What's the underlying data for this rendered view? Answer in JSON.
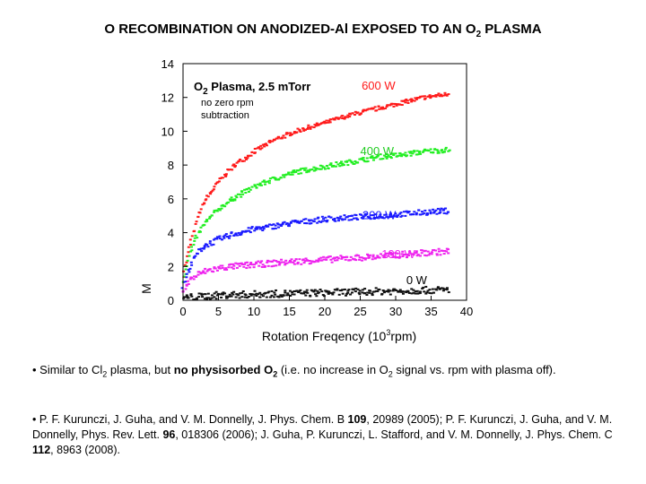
{
  "slide_title": {
    "main": "O RECOMBINATION ON ANODIZED-Al EXPOSED TO AN O",
    "sub": "2",
    "suffix": " PLASMA"
  },
  "chart_data": {
    "type": "scatter",
    "xlabel": "Rotation Freqency (10",
    "xlabel_sup": "3",
    "xlabel_suffix": "rpm)",
    "ylabel": "M",
    "xlim": [
      0,
      40
    ],
    "ylim": [
      0,
      14
    ],
    "x_ticks": [
      "0",
      "5",
      "10",
      "15",
      "20",
      "25",
      "30",
      "35",
      "40"
    ],
    "y_ticks": [
      "0",
      "2",
      "4",
      "6",
      "8",
      "10",
      "12",
      "14"
    ],
    "annotation": {
      "title": "O",
      "title_sub": "2",
      "title_suffix": " Plasma, 2.5 mTorr",
      "line1": "no zero rpm",
      "line2": "subtraction"
    },
    "series": [
      {
        "name": "600 W",
        "color": "#ff1a1a",
        "x": [
          0,
          1,
          2,
          3,
          5,
          7,
          10,
          13,
          16,
          20,
          24,
          28,
          31,
          34,
          37.5
        ],
        "values": [
          1.5,
          3.3,
          4.8,
          5.8,
          7.0,
          7.9,
          8.8,
          9.5,
          10.0,
          10.5,
          11.0,
          11.4,
          11.7,
          12.0,
          12.2
        ]
      },
      {
        "name": "400 W",
        "color": "#22ee22",
        "x": [
          0,
          1,
          2,
          3,
          5,
          7,
          10,
          13,
          16,
          20,
          24,
          28,
          31,
          34,
          37.5
        ],
        "values": [
          1.2,
          2.8,
          3.8,
          4.5,
          5.4,
          6.0,
          6.7,
          7.2,
          7.6,
          7.9,
          8.2,
          8.5,
          8.6,
          8.8,
          8.9
        ]
      },
      {
        "name": "200 W",
        "color": "#1a1aff",
        "x": [
          0,
          1,
          2,
          3,
          5,
          7,
          10,
          13,
          16,
          20,
          24,
          28,
          31,
          34,
          37.5
        ],
        "values": [
          0.8,
          2.0,
          2.8,
          3.2,
          3.6,
          3.9,
          4.2,
          4.4,
          4.6,
          4.8,
          4.9,
          5.0,
          5.1,
          5.2,
          5.3
        ]
      },
      {
        "name": "100 W",
        "color": "#ee22ee",
        "x": [
          0,
          1,
          2,
          3,
          5,
          7,
          10,
          13,
          16,
          20,
          24,
          28,
          31,
          34,
          37.5
        ],
        "values": [
          0.5,
          1.2,
          1.5,
          1.7,
          1.9,
          2.0,
          2.1,
          2.2,
          2.3,
          2.4,
          2.5,
          2.6,
          2.7,
          2.8,
          2.9
        ]
      },
      {
        "name": "0 W",
        "color": "#111111",
        "x": [
          0,
          2,
          5,
          10,
          15,
          20,
          25,
          30,
          35,
          37.5
        ],
        "values": [
          0.15,
          0.2,
          0.3,
          0.35,
          0.4,
          0.45,
          0.5,
          0.55,
          0.6,
          0.6
        ]
      }
    ]
  },
  "caption1": {
    "p1": "• Similar to Cl",
    "p1_sub": "2",
    "p2": " plasma, but ",
    "bold1": "no physisorbed O",
    "bold1_sub": "2",
    "p3": " (i.e. no increase in O",
    "p3_sub": "2",
    "p4": " signal vs. rpm with plasma off)."
  },
  "caption2": {
    "t1": "• P. F. Kurunczi, J. Guha, and V. M. Donnelly, J. Phys. Chem. B ",
    "b1": "109",
    "t2": ", 20989 (2005); P. F. Kurunczi, J. Guha, and V. M. Donnelly, Phys. Rev. Lett. ",
    "b2": "96",
    "t3": ", 018306 (2006); J. Guha, P. Kurunczi, L. Stafford, and V. M. Donnelly, J. Phys. Chem. C ",
    "b3": "112",
    "t4": ", 8963 (2008)."
  }
}
